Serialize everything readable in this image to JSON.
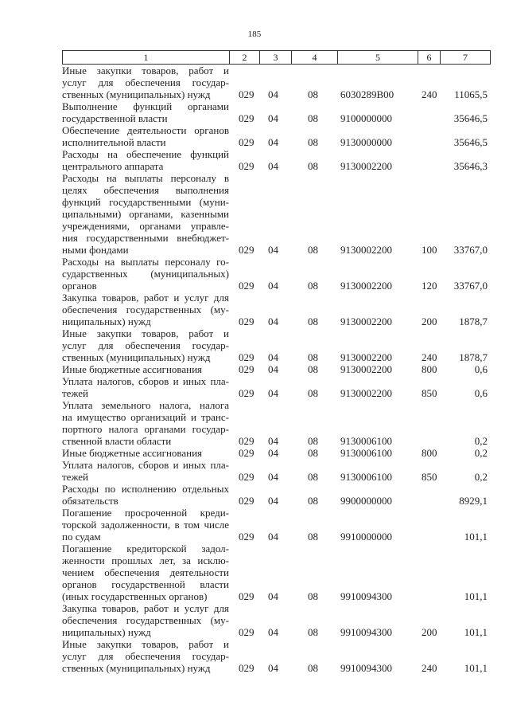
{
  "page_number": "185",
  "header": [
    "1",
    "2",
    "3",
    "4",
    "5",
    "6",
    "7"
  ],
  "rows": [
    {
      "desc": [
        "Иные закупки товаров, работ и",
        "услуг для обеспечения государ-",
        "ственных (муниципальных) нужд"
      ],
      "c2": "029",
      "c3": "04",
      "c4": "08",
      "c5": "6030289В00",
      "c6": "240",
      "c7": "11065,5"
    },
    {
      "desc": [
        "Выполнение функций органами",
        "государственной власти"
      ],
      "c2": "029",
      "c3": "04",
      "c4": "08",
      "c5": "9100000000",
      "c6": "",
      "c7": "35646,5"
    },
    {
      "desc": [
        "Обеспечение деятельности органов",
        "исполнительной власти"
      ],
      "c2": "029",
      "c3": "04",
      "c4": "08",
      "c5": "9130000000",
      "c6": "",
      "c7": "35646,5"
    },
    {
      "desc": [
        "Расходы на обеспечение функций",
        "центрального аппарата"
      ],
      "c2": "029",
      "c3": "04",
      "c4": "08",
      "c5": "9130002200",
      "c6": "",
      "c7": "35646,3"
    },
    {
      "desc": [
        "Расходы на выплаты персоналу в",
        "целях обеспечения выполнения",
        "функций государственными (муни-",
        "ципальными) органами, казенными",
        "учреждениями, органами управле-",
        "ния государственными внебюджет-",
        "ными фондами"
      ],
      "c2": "029",
      "c3": "04",
      "c4": "08",
      "c5": "9130002200",
      "c6": "100",
      "c7": "33767,0"
    },
    {
      "desc": [
        "Расходы на выплаты персоналу го-",
        "сударственных (муниципальных)",
        "органов"
      ],
      "c2": "029",
      "c3": "04",
      "c4": "08",
      "c5": "9130002200",
      "c6": "120",
      "c7": "33767,0"
    },
    {
      "desc": [
        "Закупка товаров, работ и услуг для",
        "обеспечения государственных (му-",
        "ниципальных) нужд"
      ],
      "c2": "029",
      "c3": "04",
      "c4": "08",
      "c5": "9130002200",
      "c6": "200",
      "c7": "1878,7"
    },
    {
      "desc": [
        "Иные закупки товаров, работ и",
        "услуг для обеспечения государ-",
        "ственных (муниципальных) нужд"
      ],
      "c2": "029",
      "c3": "04",
      "c4": "08",
      "c5": "9130002200",
      "c6": "240",
      "c7": "1878,7"
    },
    {
      "desc": [
        "Иные бюджетные ассигнования"
      ],
      "c2": "029",
      "c3": "04",
      "c4": "08",
      "c5": "9130002200",
      "c6": "800",
      "c7": "0,6"
    },
    {
      "desc": [
        "Уплата налогов, сборов и иных пла-",
        "тежей"
      ],
      "c2": "029",
      "c3": "04",
      "c4": "08",
      "c5": "9130002200",
      "c6": "850",
      "c7": "0,6"
    },
    {
      "desc": [
        "Уплата земельного налога, налога",
        "на имущество организаций и транс-",
        "портного налога органами государ-",
        "ственной власти области"
      ],
      "c2": "029",
      "c3": "04",
      "c4": "08",
      "c5": "9130006100",
      "c6": "",
      "c7": "0,2"
    },
    {
      "desc": [
        "Иные бюджетные ассигнования"
      ],
      "c2": "029",
      "c3": "04",
      "c4": "08",
      "c5": "9130006100",
      "c6": "800",
      "c7": "0,2"
    },
    {
      "desc": [
        "Уплата налогов, сборов и иных пла-",
        "тежей"
      ],
      "c2": "029",
      "c3": "04",
      "c4": "08",
      "c5": "9130006100",
      "c6": "850",
      "c7": "0,2"
    },
    {
      "desc": [
        "Расходы по исполнению отдельных",
        "обязательств"
      ],
      "c2": "029",
      "c3": "04",
      "c4": "08",
      "c5": "9900000000",
      "c6": "",
      "c7": "8929,1"
    },
    {
      "desc": [
        "Погашение просроченной креди-",
        "торской задолженности, в том числе",
        "по судам"
      ],
      "c2": "029",
      "c3": "04",
      "c4": "08",
      "c5": "9910000000",
      "c6": "",
      "c7": "101,1"
    },
    {
      "desc": [
        "Погашение кредиторской задол-",
        "женности прошлых лет, за исклю-",
        "чением обеспечения деятельности",
        "органов государственной власти",
        "(иных государственных органов)"
      ],
      "c2": "029",
      "c3": "04",
      "c4": "08",
      "c5": "9910094300",
      "c6": "",
      "c7": "101,1"
    },
    {
      "desc": [
        "Закупка товаров, работ и услуг для",
        "обеспечения государственных (му-",
        "ниципальных) нужд"
      ],
      "c2": "029",
      "c3": "04",
      "c4": "08",
      "c5": "9910094300",
      "c6": "200",
      "c7": "101,1"
    },
    {
      "desc": [
        "Иные закупки товаров, работ и",
        "услуг для обеспечения государ-",
        "ственных (муниципальных) нужд"
      ],
      "c2": "029",
      "c3": "04",
      "c4": "08",
      "c5": "9910094300",
      "c6": "240",
      "c7": "101,1"
    }
  ]
}
